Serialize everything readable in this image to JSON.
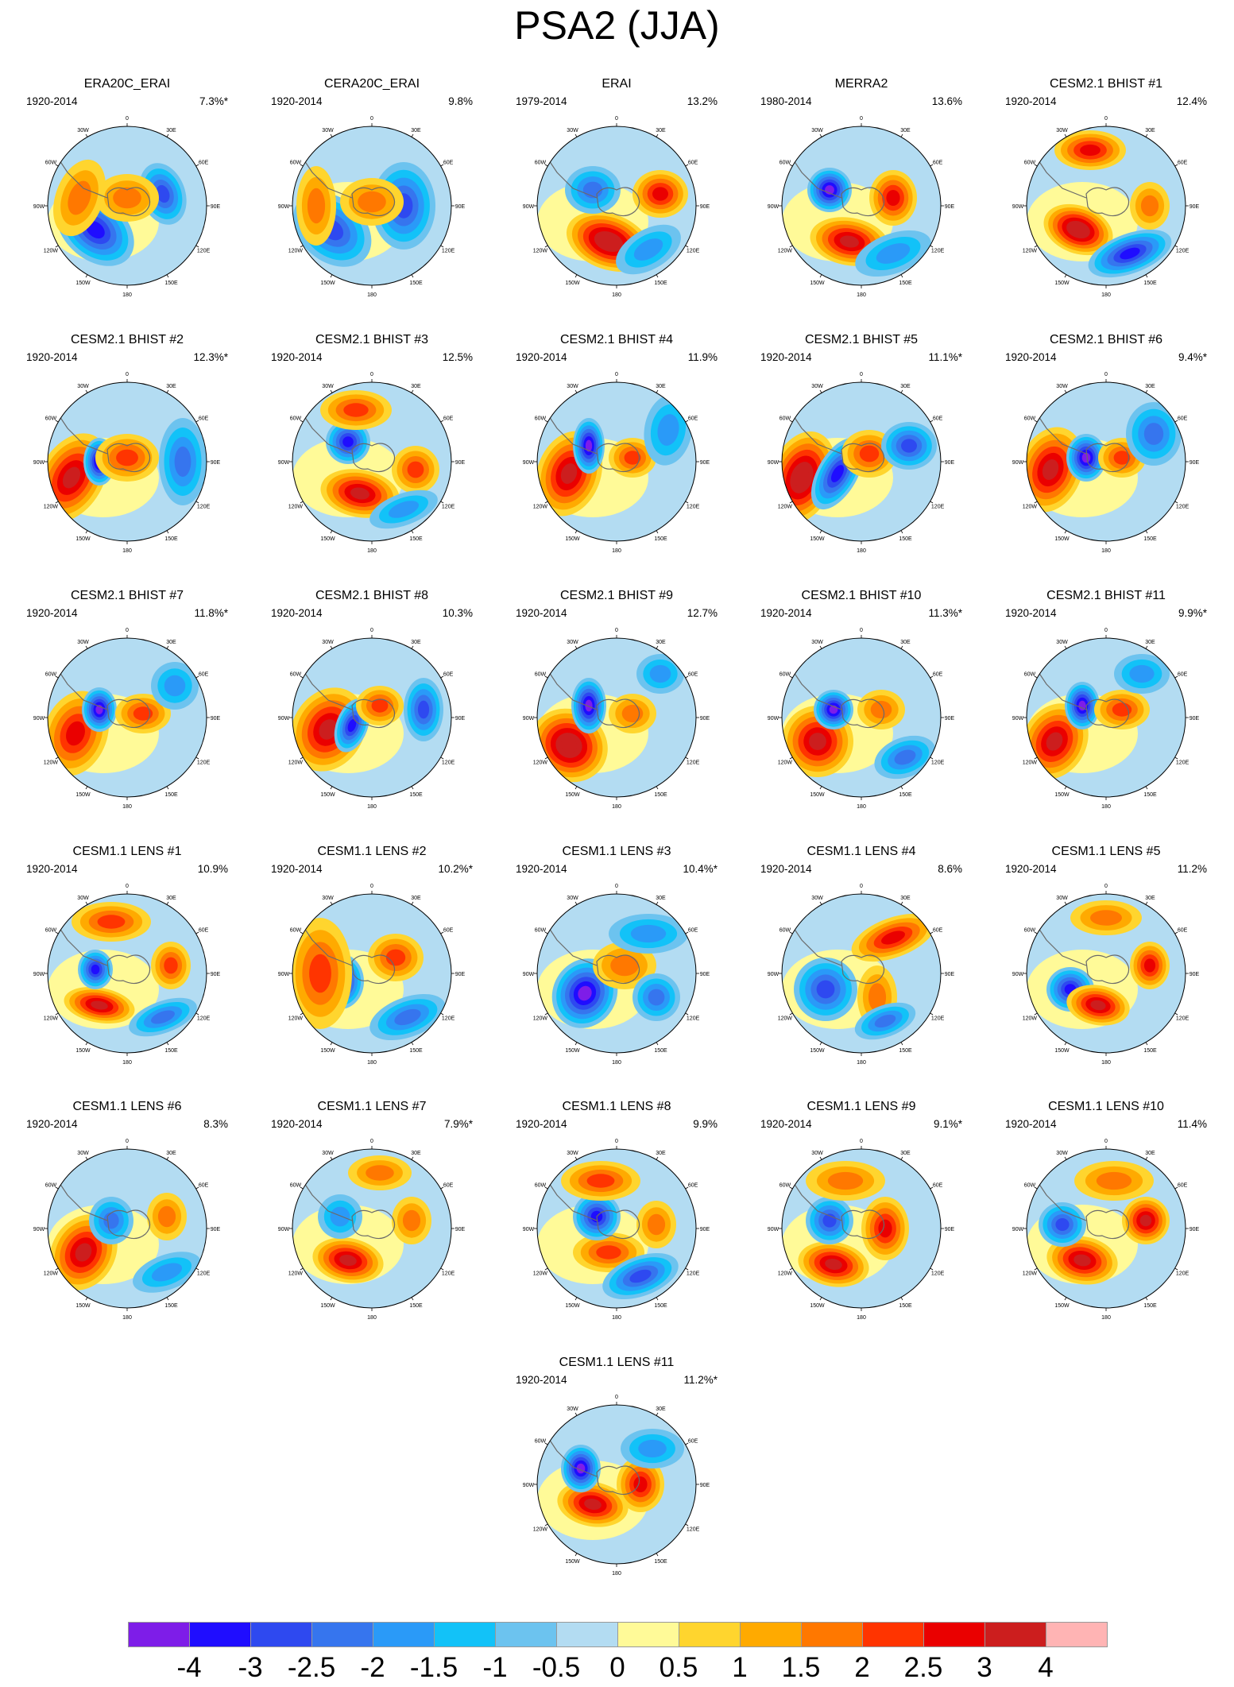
{
  "title": "PSA2 (JJA)",
  "lon_labels": [
    "0",
    "30E",
    "60E",
    "90E",
    "120E",
    "150E",
    "180",
    "150W",
    "120W",
    "90W",
    "60W",
    "30W"
  ],
  "panels": [
    {
      "name": "ERA20C_ERAI",
      "period": "1920-2014",
      "pct": "7.3%*"
    },
    {
      "name": "CERA20C_ERAI",
      "period": "1920-2014",
      "pct": "9.8%"
    },
    {
      "name": "ERAI",
      "period": "1979-2014",
      "pct": "13.2%"
    },
    {
      "name": "MERRA2",
      "period": "1980-2014",
      "pct": "13.6%"
    },
    {
      "name": "CESM2.1 BHIST #1",
      "period": "1920-2014",
      "pct": "12.4%"
    },
    {
      "name": "CESM2.1 BHIST #2",
      "period": "1920-2014",
      "pct": "12.3%*"
    },
    {
      "name": "CESM2.1 BHIST #3",
      "period": "1920-2014",
      "pct": "12.5%"
    },
    {
      "name": "CESM2.1 BHIST #4",
      "period": "1920-2014",
      "pct": "11.9%"
    },
    {
      "name": "CESM2.1 BHIST #5",
      "period": "1920-2014",
      "pct": "11.1%*"
    },
    {
      "name": "CESM2.1 BHIST #6",
      "period": "1920-2014",
      "pct": "9.4%*"
    },
    {
      "name": "CESM2.1 BHIST #7",
      "period": "1920-2014",
      "pct": "11.8%*"
    },
    {
      "name": "CESM2.1 BHIST #8",
      "period": "1920-2014",
      "pct": "10.3%"
    },
    {
      "name": "CESM2.1 BHIST #9",
      "period": "1920-2014",
      "pct": "12.7%"
    },
    {
      "name": "CESM2.1 BHIST #10",
      "period": "1920-2014",
      "pct": "11.3%*"
    },
    {
      "name": "CESM2.1 BHIST #11",
      "period": "1920-2014",
      "pct": "9.9%*"
    },
    {
      "name": "CESM1.1 LENS #1",
      "period": "1920-2014",
      "pct": "10.9%"
    },
    {
      "name": "CESM1.1 LENS #2",
      "period": "1920-2014",
      "pct": "10.2%*"
    },
    {
      "name": "CESM1.1 LENS #3",
      "period": "1920-2014",
      "pct": "10.4%*"
    },
    {
      "name": "CESM1.1 LENS #4",
      "period": "1920-2014",
      "pct": "8.6%"
    },
    {
      "name": "CESM1.1 LENS #5",
      "period": "1920-2014",
      "pct": "11.2%"
    },
    {
      "name": "CESM1.1 LENS #6",
      "period": "1920-2014",
      "pct": "8.3%"
    },
    {
      "name": "CESM1.1 LENS #7",
      "period": "1920-2014",
      "pct": "7.9%*"
    },
    {
      "name": "CESM1.1 LENS #8",
      "period": "1920-2014",
      "pct": "9.9%"
    },
    {
      "name": "CESM1.1 LENS #9",
      "period": "1920-2014",
      "pct": "9.1%*"
    },
    {
      "name": "CESM1.1 LENS #10",
      "period": "1920-2014",
      "pct": "11.4%"
    },
    {
      "name": "CESM1.1 LENS #11",
      "period": "1920-2014",
      "pct": "11.2%*"
    }
  ],
  "colorbar": {
    "colors": [
      "#7e1de8",
      "#1f0dff",
      "#2e49f0",
      "#3675ee",
      "#2a9af8",
      "#12c2f8",
      "#6cc3ef",
      "#b3dcf2",
      "#fffa98",
      "#ffd52e",
      "#ffaa00",
      "#ff7800",
      "#ff3400",
      "#ea0000",
      "#cc1e1e",
      "#ffb4b4"
    ],
    "labels": [
      "-4",
      "-3",
      "-2.5",
      "-2",
      "-1.5",
      "-1",
      "-0.5",
      "0",
      "0.5",
      "1",
      "1.5",
      "2",
      "2.5",
      "3",
      "4"
    ]
  }
}
